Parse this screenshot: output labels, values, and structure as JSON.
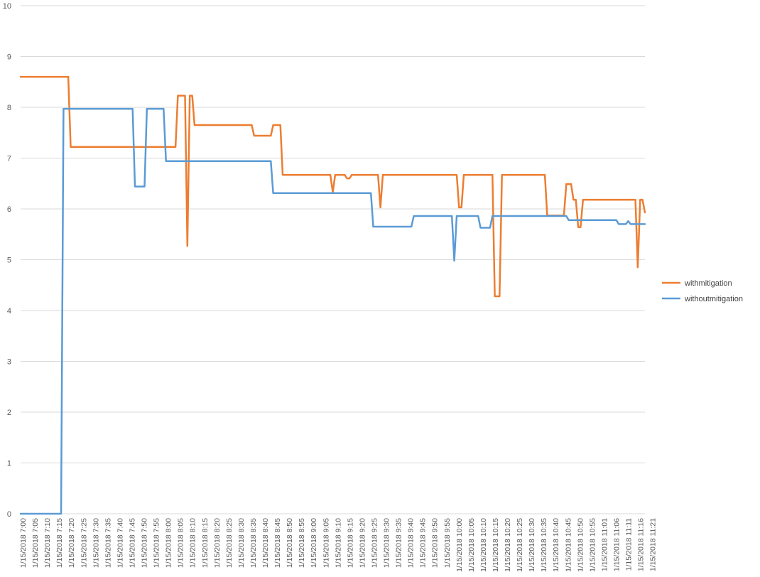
{
  "chart_data": {
    "type": "line",
    "title": "",
    "xlabel": "",
    "ylabel": "",
    "ylim": [
      0,
      10
    ],
    "y_ticks": [
      "0",
      "1",
      "2",
      "3",
      "4",
      "5",
      "6",
      "7",
      "8",
      "9",
      "10"
    ],
    "grid": "horizontal",
    "legend": "right",
    "x_tick_labels": [
      "1/15/2018 7:00",
      "1/15/2018 7:05",
      "1/15/2018 7:10",
      "1/15/2018 7:15",
      "1/15/2018 7:20",
      "1/15/2018 7:25",
      "1/15/2018 7:30",
      "1/15/2018 7:35",
      "1/15/2018 7:40",
      "1/15/2018 7:45",
      "1/15/2018 7:50",
      "1/15/2018 7:55",
      "1/15/2018 8:00",
      "1/15/2018 8:05",
      "1/15/2018 8:10",
      "1/15/2018 8:15",
      "1/15/2018 8:20",
      "1/15/2018 8:25",
      "1/15/2018 8:30",
      "1/15/2018 8:35",
      "1/15/2018 8:40",
      "1/15/2018 8:45",
      "1/15/2018 8:50",
      "1/15/2018 8:55",
      "1/15/2018 9:00",
      "1/15/2018 9:05",
      "1/15/2018 9:10",
      "1/15/2018 9:15",
      "1/15/2018 9:20",
      "1/15/2018 9:25",
      "1/15/2018 9:30",
      "1/15/2018 9:35",
      "1/15/2018 9:40",
      "1/15/2018 9:45",
      "1/15/2018 9:50",
      "1/15/2018 9:55",
      "1/15/2018 10:00",
      "1/15/2018 10:05",
      "1/15/2018 10:10",
      "1/15/2018 10:15",
      "1/15/2018 10:20",
      "1/15/2018 10:25",
      "1/15/2018 10:30",
      "1/15/2018 10:35",
      "1/15/2018 10:40",
      "1/15/2018 10:45",
      "1/15/2018 10:50",
      "1/15/2018 10:55",
      "1/15/2018 11:01",
      "1/15/2018 11:06",
      "1/15/2018 11:11",
      "1/15/2018 11:16",
      "1/15/2018 11:21"
    ],
    "x_start": "1/15/2018 7:00",
    "x_end": "1/15/2018 11:22",
    "series": [
      {
        "name": "withmitigation",
        "color": "#ED7D31",
        "points": [
          [
            "1/15/2018 7:00",
            8.6
          ],
          [
            "1/15/2018 7:20",
            8.6
          ],
          [
            "1/15/2018 7:21",
            7.22
          ],
          [
            "1/15/2018 8:05",
            7.22
          ],
          [
            "1/15/2018 8:06",
            8.23
          ],
          [
            "1/15/2018 8:09",
            8.23
          ],
          [
            "1/15/2018 8:10",
            5.27
          ],
          [
            "1/15/2018 8:11",
            8.23
          ],
          [
            "1/15/2018 8:12",
            8.23
          ],
          [
            "1/15/2018 8:13",
            7.65
          ],
          [
            "1/15/2018 8:37",
            7.65
          ],
          [
            "1/15/2018 8:38",
            7.44
          ],
          [
            "1/15/2018 8:45",
            7.44
          ],
          [
            "1/15/2018 8:46",
            7.65
          ],
          [
            "1/15/2018 8:49",
            7.65
          ],
          [
            "1/15/2018 8:50",
            6.67
          ],
          [
            "1/15/2018 9:10",
            6.67
          ],
          [
            "1/15/2018 9:11",
            6.33
          ],
          [
            "1/15/2018 9:12",
            6.67
          ],
          [
            "1/15/2018 9:16",
            6.67
          ],
          [
            "1/15/2018 9:17",
            6.6
          ],
          [
            "1/15/2018 9:18",
            6.6
          ],
          [
            "1/15/2018 9:19",
            6.67
          ],
          [
            "1/15/2018 9:30",
            6.67
          ],
          [
            "1/15/2018 9:31",
            6.03
          ],
          [
            "1/15/2018 9:32",
            6.67
          ],
          [
            "1/15/2018 10:03",
            6.67
          ],
          [
            "1/15/2018 10:04",
            6.03
          ],
          [
            "1/15/2018 10:05",
            6.03
          ],
          [
            "1/15/2018 10:06",
            6.67
          ],
          [
            "1/15/2018 10:18",
            6.67
          ],
          [
            "1/15/2018 10:19",
            4.28
          ],
          [
            "1/15/2018 10:21",
            4.28
          ],
          [
            "1/15/2018 10:22",
            6.67
          ],
          [
            "1/15/2018 10:40",
            6.67
          ],
          [
            "1/15/2018 10:41",
            5.87
          ],
          [
            "1/15/2018 10:48",
            5.87
          ],
          [
            "1/15/2018 10:49",
            6.49
          ],
          [
            "1/15/2018 10:51",
            6.49
          ],
          [
            "1/15/2018 10:52",
            6.18
          ],
          [
            "1/15/2018 10:53",
            6.18
          ],
          [
            "1/15/2018 10:54",
            5.64
          ],
          [
            "1/15/2018 10:55",
            5.64
          ],
          [
            "1/15/2018 10:56",
            6.18
          ],
          [
            "1/15/2018 11:18",
            6.18
          ],
          [
            "1/15/2018 11:19",
            4.85
          ],
          [
            "1/15/2018 11:20",
            6.18
          ],
          [
            "1/15/2018 11:21",
            6.18
          ],
          [
            "1/15/2018 11:22",
            5.93
          ]
        ]
      },
      {
        "name": "withoutmitigation",
        "color": "#5B9BD5",
        "points": [
          [
            "1/15/2018 7:00",
            0
          ],
          [
            "1/15/2018 7:17",
            0
          ],
          [
            "1/15/2018 7:18",
            7.97
          ],
          [
            "1/15/2018 7:47",
            7.97
          ],
          [
            "1/15/2018 7:48",
            6.44
          ],
          [
            "1/15/2018 7:52",
            6.44
          ],
          [
            "1/15/2018 7:53",
            7.97
          ],
          [
            "1/15/2018 8:00",
            7.97
          ],
          [
            "1/15/2018 8:01",
            6.94
          ],
          [
            "1/15/2018 8:45",
            6.94
          ],
          [
            "1/15/2018 8:46",
            6.31
          ],
          [
            "1/15/2018 9:27",
            6.31
          ],
          [
            "1/15/2018 9:28",
            5.65
          ],
          [
            "1/15/2018 9:44",
            5.65
          ],
          [
            "1/15/2018 9:45",
            5.86
          ],
          [
            "1/15/2018 10:01",
            5.86
          ],
          [
            "1/15/2018 10:02",
            4.98
          ],
          [
            "1/15/2018 10:03",
            5.86
          ],
          [
            "1/15/2018 10:12",
            5.86
          ],
          [
            "1/15/2018 10:13",
            5.63
          ],
          [
            "1/15/2018 10:17",
            5.63
          ],
          [
            "1/15/2018 10:18",
            5.86
          ],
          [
            "1/15/2018 10:49",
            5.86
          ],
          [
            "1/15/2018 10:50",
            5.78
          ],
          [
            "1/15/2018 11:10",
            5.78
          ],
          [
            "1/15/2018 11:11",
            5.7
          ],
          [
            "1/15/2018 11:14",
            5.7
          ],
          [
            "1/15/2018 11:15",
            5.76
          ],
          [
            "1/15/2018 11:16",
            5.7
          ],
          [
            "1/15/2018 11:22",
            5.7
          ]
        ]
      }
    ]
  }
}
